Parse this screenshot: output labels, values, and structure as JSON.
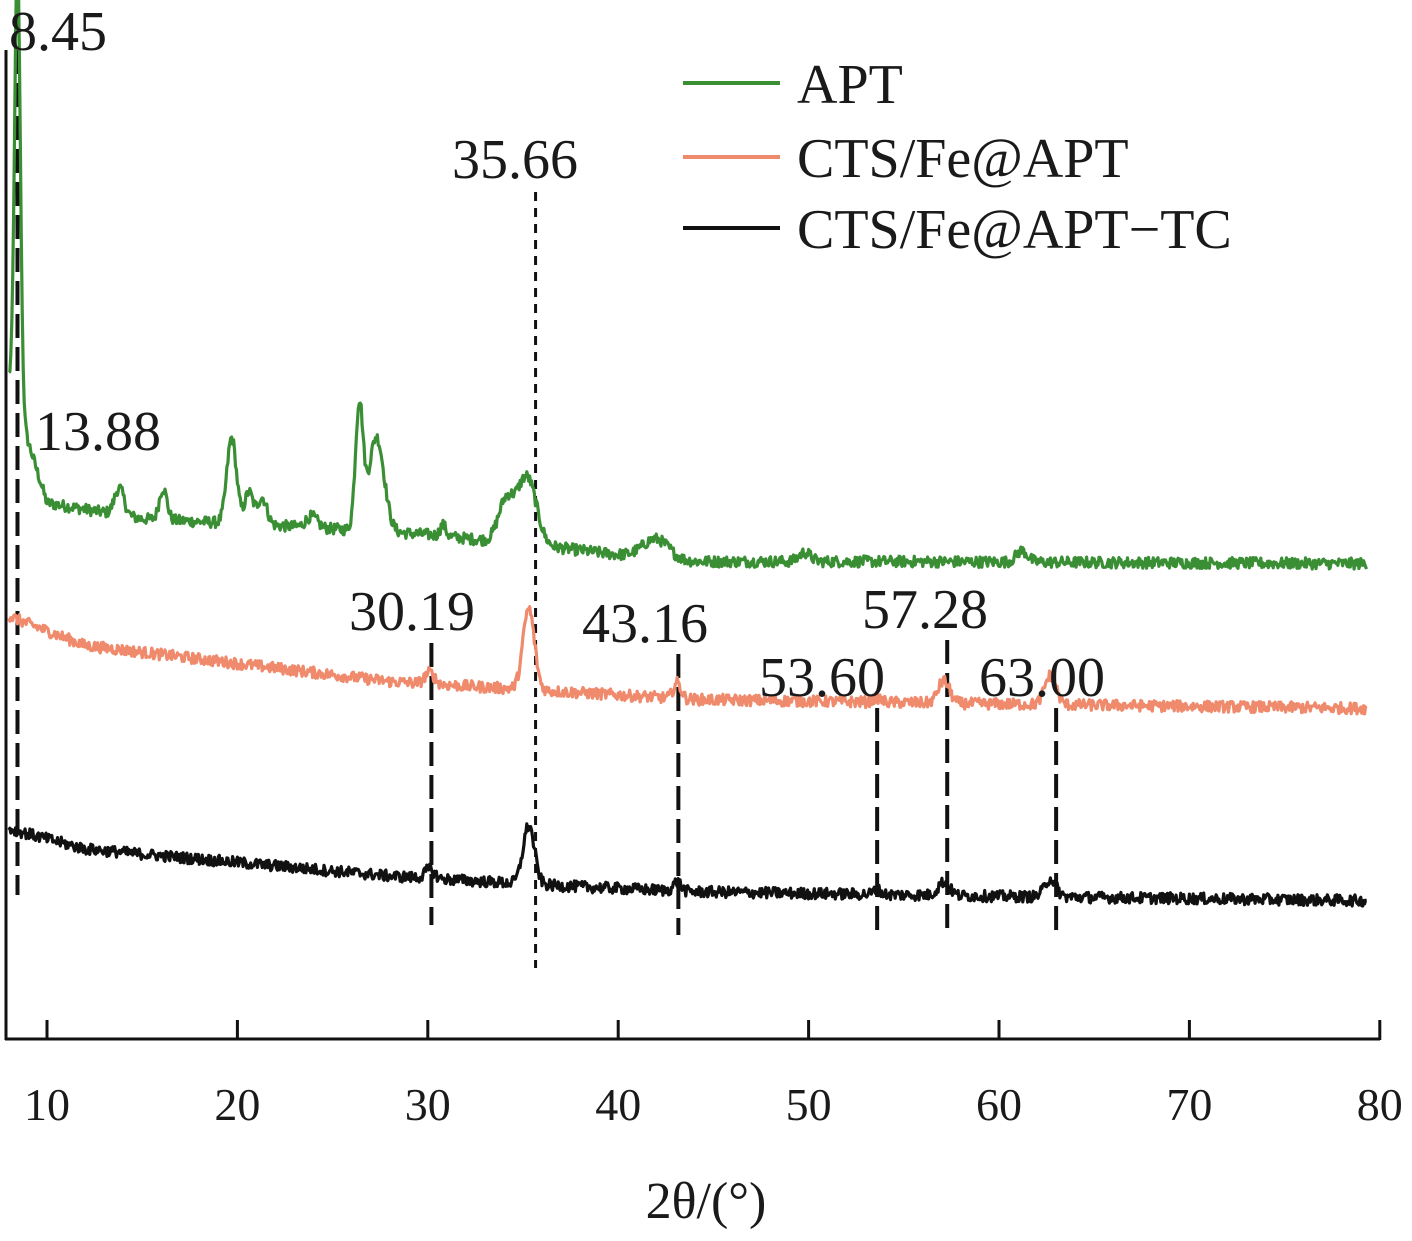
{
  "chart_data": {
    "type": "line",
    "xlabel": "2θ/(°)",
    "xlim": [
      8,
      80
    ],
    "x_ticks": [
      10,
      20,
      30,
      40,
      50,
      60,
      70,
      80
    ],
    "y_ticks_shown": false,
    "grid": false,
    "legend_position": "top-right",
    "series": [
      {
        "name": "APT",
        "color": "#3a8f35",
        "baseline": [
          [
            8,
            0.75
          ],
          [
            10,
            0.2
          ],
          [
            15,
            0.13
          ],
          [
            22,
            0.1
          ],
          [
            30,
            0.06
          ],
          [
            37,
            0.0
          ],
          [
            43,
            -0.06
          ],
          [
            55,
            -0.06
          ],
          [
            80,
            -0.07
          ]
        ],
        "peaks": [
          [
            8.45,
            2.0,
            0.15
          ],
          [
            13.8,
            0.12,
            0.25
          ],
          [
            16.1,
            0.14,
            0.2
          ],
          [
            19.7,
            0.38,
            0.25
          ],
          [
            20.6,
            0.14,
            0.22
          ],
          [
            21.3,
            0.12,
            0.25
          ],
          [
            23.9,
            0.05,
            0.3
          ],
          [
            26.4,
            0.55,
            0.2
          ],
          [
            27.3,
            0.42,
            0.4
          ],
          [
            30.8,
            0.05,
            0.15
          ],
          [
            34.1,
            0.18,
            0.4
          ],
          [
            35.2,
            0.3,
            0.5
          ],
          [
            42.0,
            0.09,
            0.7
          ],
          [
            49.8,
            0.04,
            0.3
          ],
          [
            61.2,
            0.05,
            0.3
          ]
        ]
      },
      {
        "name": "CTS/Fe@APT",
        "color": "#ef8a6c",
        "baseline": [
          [
            8,
            0.55
          ],
          [
            12,
            0.42
          ],
          [
            20,
            0.34
          ],
          [
            28,
            0.26
          ],
          [
            36,
            0.22
          ],
          [
            44,
            0.18
          ],
          [
            60,
            0.16
          ],
          [
            80,
            0.14
          ]
        ],
        "peaks": [
          [
            30.1,
            0.05,
            0.25
          ],
          [
            35.3,
            0.36,
            0.3
          ],
          [
            43.1,
            0.07,
            0.2
          ],
          [
            53.6,
            0.02,
            0.2
          ],
          [
            57.1,
            0.1,
            0.3
          ],
          [
            62.7,
            0.13,
            0.3
          ]
        ]
      },
      {
        "name": "CTS/Fe@APT−TC",
        "color": "#111111",
        "baseline": [
          [
            8,
            0.45
          ],
          [
            12,
            0.36
          ],
          [
            20,
            0.3
          ],
          [
            28,
            0.24
          ],
          [
            36,
            0.2
          ],
          [
            44,
            0.17
          ],
          [
            60,
            0.15
          ],
          [
            80,
            0.13
          ]
        ],
        "peaks": [
          [
            30.1,
            0.04,
            0.25
          ],
          [
            35.3,
            0.26,
            0.3
          ],
          [
            43.1,
            0.04,
            0.2
          ],
          [
            53.6,
            0.02,
            0.2
          ],
          [
            57.1,
            0.06,
            0.3
          ],
          [
            62.7,
            0.08,
            0.3
          ]
        ]
      }
    ],
    "annotations": [
      {
        "label": "8.45",
        "x": 8.45
      },
      {
        "label": "13.88",
        "x": 13.88
      },
      {
        "label": "35.66",
        "x": 35.66
      },
      {
        "label": "30.19",
        "x": 30.19
      },
      {
        "label": "43.16",
        "x": 43.16
      },
      {
        "label": "53.60",
        "x": 53.6
      },
      {
        "label": "57.28",
        "x": 57.28
      },
      {
        "label": "63.00",
        "x": 63.0
      }
    ]
  }
}
